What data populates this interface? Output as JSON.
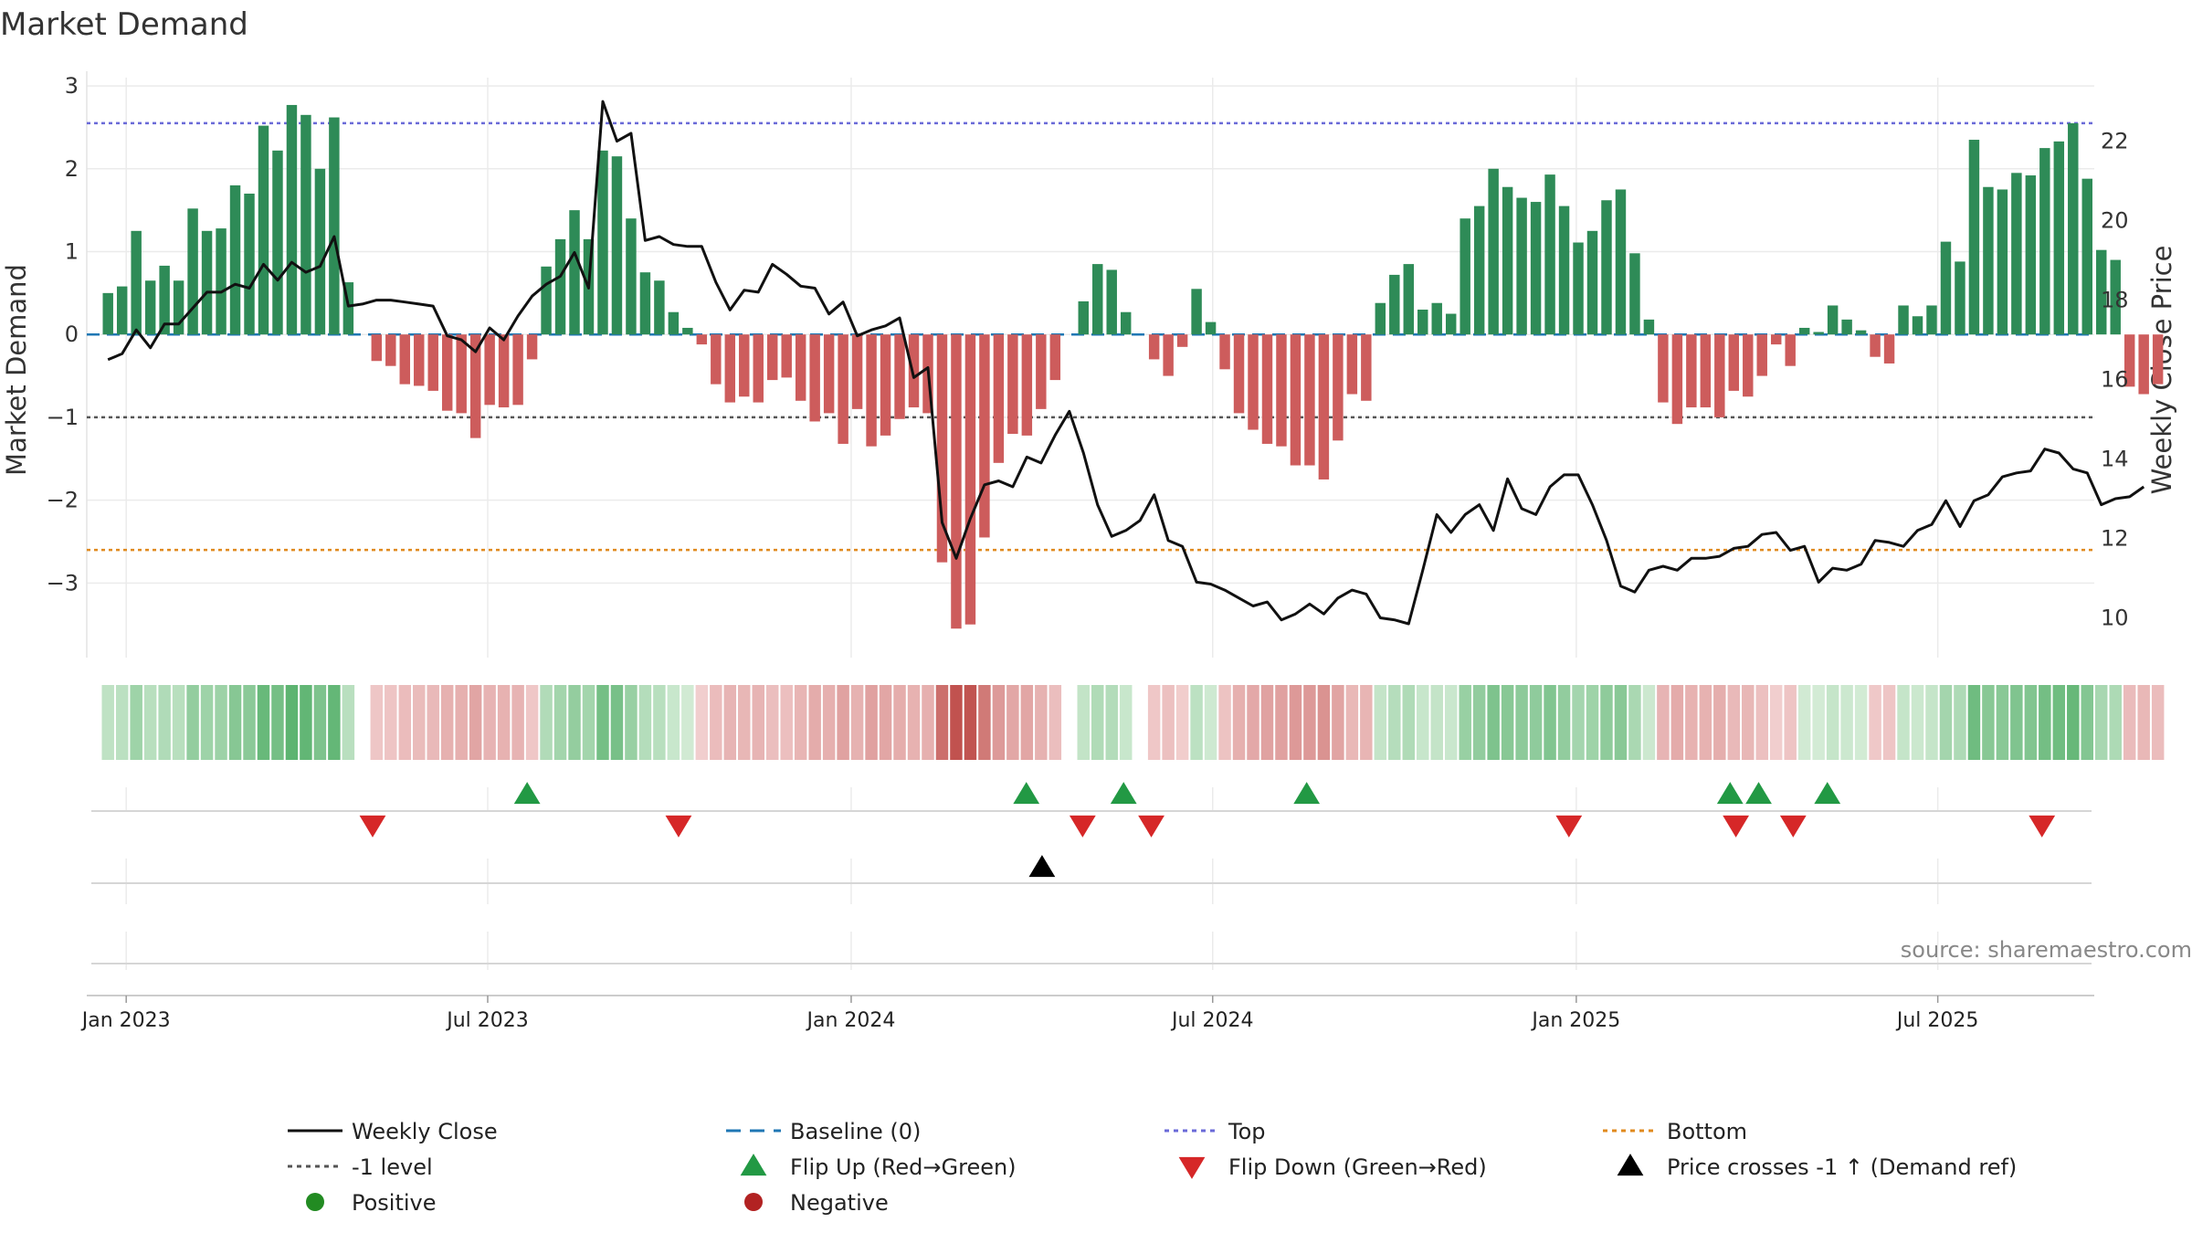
{
  "chart_data": {
    "type": "bar+line",
    "title": "Market Demand",
    "ylabel_left": "Market Demand",
    "ylabel_right": "Weekly Close Price",
    "ylim_left": [
      -3.9,
      3.1
    ],
    "ylim_right": [
      9.0,
      23.6
    ],
    "yticks_left": [
      3,
      2,
      1,
      0,
      -1,
      -2,
      -3
    ],
    "yticks_left_labels": [
      "3",
      "2",
      "1",
      "0",
      "−1",
      "−2",
      "−3"
    ],
    "yticks_right": [
      22,
      20,
      18,
      16,
      14,
      12,
      10
    ],
    "yticks_right_labels": [
      "22",
      "20",
      "18",
      "16",
      "14",
      "12",
      "10"
    ],
    "x_range_weeks": [
      -1.5,
      140.5
    ],
    "xtick_weeks": [
      1.29,
      26.86,
      52.57,
      78.14,
      103.86,
      129.43
    ],
    "xtick_labels": [
      "Jan 2023",
      "Jul 2023",
      "Jan 2024",
      "Jul 2024",
      "Jan 2025",
      "Jul 2025"
    ],
    "reference_lines": {
      "baseline": 0,
      "top": 2.55,
      "minus_one": -1,
      "bottom": -2.6
    },
    "colors": {
      "positive_bar": "#2e8b57",
      "negative_bar": "#cd5c5c",
      "close": "#111111",
      "baseline": "#1f77b4",
      "top": "#6a6ad8",
      "minus_one": "#555555",
      "bottom": "#e08a1e",
      "flip_up": "#229944",
      "flip_down": "#d62728",
      "cross_marker": "#000000",
      "positive_legend": "#228b22",
      "negative_legend": "#b22222",
      "heat_pos_low": "#d4ecd6",
      "heat_pos_high": "#5cb370",
      "heat_neg_low": "#f3d2d2",
      "heat_neg_high": "#c0504d"
    },
    "demand": [
      0.5,
      0.58,
      1.25,
      0.65,
      0.83,
      0.65,
      1.52,
      1.25,
      1.28,
      1.8,
      1.7,
      2.52,
      2.22,
      2.77,
      2.65,
      2.0,
      2.62,
      0.63,
      0.0,
      -0.32,
      -0.38,
      -0.6,
      -0.62,
      -0.68,
      -0.92,
      -0.95,
      -1.25,
      -0.85,
      -0.88,
      -0.85,
      -0.3,
      0.82,
      1.15,
      1.5,
      1.15,
      2.22,
      2.15,
      1.4,
      0.75,
      0.65,
      0.27,
      0.08,
      -0.12,
      -0.6,
      -0.82,
      -0.75,
      -0.82,
      -0.55,
      -0.52,
      -0.8,
      -1.05,
      -0.95,
      -1.32,
      -0.9,
      -1.35,
      -1.22,
      -1.02,
      -0.88,
      -0.95,
      -2.75,
      -3.55,
      -3.5,
      -2.45,
      -1.55,
      -1.2,
      -1.22,
      -0.9,
      -0.55,
      0.0,
      0.4,
      0.85,
      0.78,
      0.27,
      0.0,
      -0.3,
      -0.5,
      -0.15,
      0.55,
      0.15,
      -0.42,
      -0.95,
      -1.15,
      -1.32,
      -1.35,
      -1.58,
      -1.58,
      -1.75,
      -1.28,
      -0.72,
      -0.8,
      0.38,
      0.72,
      0.85,
      0.3,
      0.38,
      0.25,
      1.4,
      1.55,
      2.0,
      1.78,
      1.65,
      1.6,
      1.93,
      1.55,
      1.11,
      1.25,
      1.62,
      1.75,
      0.98,
      0.18,
      -0.82,
      -1.08,
      -0.88,
      -0.88,
      -1.0,
      -0.68,
      -0.75,
      -0.5,
      -0.12,
      -0.38,
      0.08,
      0.03,
      0.35,
      0.18,
      0.05,
      -0.27,
      -0.35,
      0.35,
      0.22,
      0.35,
      1.12,
      0.88,
      2.35,
      1.78,
      1.75,
      1.95,
      1.92,
      2.25,
      2.33,
      2.55,
      1.88,
      1.02,
      0.9,
      -0.63,
      -0.72,
      -0.6
    ],
    "weekly_close": [
      16.5,
      16.65,
      17.25,
      16.8,
      17.4,
      17.4,
      17.8,
      18.2,
      18.2,
      18.4,
      18.3,
      18.9,
      18.5,
      18.95,
      18.7,
      18.85,
      19.6,
      17.85,
      17.9,
      18.0,
      18.0,
      17.95,
      17.9,
      17.85,
      17.1,
      17.0,
      16.7,
      17.3,
      17.0,
      17.6,
      18.1,
      18.4,
      18.6,
      19.2,
      18.3,
      23.0,
      22.0,
      22.2,
      19.5,
      19.6,
      19.4,
      19.35,
      19.35,
      18.45,
      17.75,
      18.25,
      18.2,
      18.9,
      18.65,
      18.35,
      18.3,
      17.65,
      17.95,
      17.1,
      17.25,
      17.35,
      17.55,
      16.05,
      16.3,
      12.4,
      11.5,
      12.5,
      13.35,
      13.45,
      13.3,
      14.05,
      13.9,
      14.6,
      15.2,
      14.15,
      12.85,
      12.05,
      12.2,
      12.45,
      13.1,
      11.95,
      11.8,
      10.9,
      10.85,
      10.7,
      10.5,
      10.3,
      10.4,
      9.95,
      10.1,
      10.35,
      10.1,
      10.5,
      10.7,
      10.6,
      10.0,
      9.95,
      9.85,
      11.2,
      12.6,
      12.15,
      12.6,
      12.85,
      12.2,
      13.5,
      12.75,
      12.6,
      13.3,
      13.6,
      13.6,
      12.85,
      11.95,
      10.8,
      10.65,
      11.2,
      11.3,
      11.2,
      11.5,
      11.5,
      11.55,
      11.75,
      11.8,
      12.1,
      12.15,
      11.7,
      11.8,
      10.9,
      11.25,
      11.2,
      11.35,
      11.95,
      11.9,
      11.8,
      12.2,
      12.35,
      12.95,
      12.3,
      12.95,
      13.1,
      13.55,
      13.65,
      13.7,
      14.25,
      14.15,
      13.75,
      13.65,
      12.85,
      13.0,
      13.05,
      13.3
    ],
    "flip_up_weeks": [
      29.65,
      64.96,
      71.84,
      84.79,
      114.74,
      116.76,
      121.62
    ],
    "flip_down_weeks": [
      18.72,
      40.36,
      68.94,
      73.8,
      103.34,
      115.15,
      119.2,
      136.8
    ],
    "price_cross_weeks": [
      66.07
    ],
    "source_text": "source: sharemaestro.com",
    "legend": [
      {
        "label": "Weekly Close",
        "marker": "line",
        "color": "#111111"
      },
      {
        "label": "Baseline (0)",
        "marker": "dash",
        "color": "#1f77b4"
      },
      {
        "label": "Top",
        "marker": "dot",
        "color": "#6a6ad8"
      },
      {
        "label": "Bottom",
        "marker": "dot",
        "color": "#e08a1e"
      },
      {
        "label": "-1 level",
        "marker": "dot",
        "color": "#555555"
      },
      {
        "label": "Flip Up (Red→Green)",
        "marker": "tri-up",
        "color": "#229944"
      },
      {
        "label": "Flip Down (Green→Red)",
        "marker": "tri-down",
        "color": "#d62728"
      },
      {
        "label": "Price crosses -1 ↑ (Demand ref)",
        "marker": "tri-up",
        "color": "#000000"
      },
      {
        "label": "Positive",
        "marker": "circle",
        "color": "#228b22"
      },
      {
        "label": "Negative",
        "marker": "circle",
        "color": "#b22222"
      }
    ]
  }
}
